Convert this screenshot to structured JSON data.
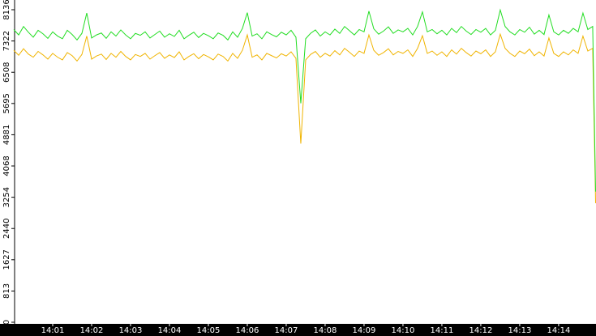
{
  "chart_data": {
    "type": "line",
    "x": [
      0,
      0.125,
      0.25,
      0.375,
      0.5,
      0.625,
      0.75,
      0.875,
      1,
      1.125,
      1.25,
      1.375,
      1.5,
      1.625,
      1.75,
      1.875,
      2,
      2.125,
      2.25,
      2.375,
      2.5,
      2.625,
      2.75,
      2.875,
      3,
      3.125,
      3.25,
      3.375,
      3.5,
      3.625,
      3.75,
      3.875,
      4,
      4.125,
      4.25,
      4.375,
      4.5,
      4.625,
      4.75,
      4.875,
      5,
      5.125,
      5.25,
      5.375,
      5.5,
      5.625,
      5.75,
      5.875,
      6,
      6.125,
      6.25,
      6.375,
      6.5,
      6.625,
      6.75,
      6.875,
      7,
      7.125,
      7.25,
      7.375,
      7.5,
      7.625,
      7.75,
      7.875,
      8,
      8.125,
      8.25,
      8.375,
      8.5,
      8.625,
      8.75,
      8.875,
      9,
      9.125,
      9.25,
      9.375,
      9.5,
      9.625,
      9.75,
      9.875,
      10,
      10.125,
      10.25,
      10.375,
      10.5,
      10.625,
      10.75,
      10.875,
      11,
      11.125,
      11.25,
      11.375,
      11.5,
      11.625,
      11.75,
      11.875,
      12,
      12.125,
      12.25,
      12.375,
      12.5,
      12.625,
      12.75,
      12.875,
      13,
      13.125,
      13.25,
      13.375,
      13.5,
      13.625,
      13.75,
      13.875,
      14,
      14.125,
      14.25,
      14.375,
      14.5,
      14.625,
      14.75,
      14.875,
      14.95
    ],
    "series": [
      {
        "color": "#22dd22",
        "values": [
          7620,
          7480,
          7700,
          7550,
          7420,
          7600,
          7510,
          7390,
          7560,
          7450,
          7380,
          7600,
          7490,
          7350,
          7520,
          8050,
          7400,
          7480,
          7530,
          7390,
          7560,
          7450,
          7610,
          7480,
          7380,
          7520,
          7470,
          7560,
          7400,
          7490,
          7580,
          7420,
          7510,
          7440,
          7600,
          7380,
          7470,
          7550,
          7410,
          7520,
          7460,
          7380,
          7530,
          7470,
          7350,
          7560,
          7420,
          7650,
          8060,
          7450,
          7510,
          7380,
          7560,
          7490,
          7430,
          7550,
          7480,
          7600,
          7420,
          5700,
          7380,
          7520,
          7610,
          7450,
          7560,
          7480,
          7630,
          7520,
          7700,
          7590,
          7480,
          7620,
          7560,
          8100,
          7640,
          7500,
          7580,
          7690,
          7520,
          7610,
          7560,
          7650,
          7480,
          7700,
          8080,
          7560,
          7620,
          7510,
          7600,
          7480,
          7650,
          7540,
          7700,
          7580,
          7490,
          7620,
          7550,
          7650,
          7480,
          7600,
          8130,
          7700,
          7560,
          7480,
          7620,
          7550,
          7680,
          7500,
          7600,
          7490,
          8000,
          7560,
          7480,
          7600,
          7520,
          7650,
          7560,
          8050,
          7620,
          7700,
          3400
        ]
      },
      {
        "color": "#f0b400",
        "values": [
          7080,
          6950,
          7120,
          6980,
          6900,
          7050,
          6960,
          6850,
          7000,
          6900,
          6830,
          7020,
          6940,
          6800,
          6970,
          7450,
          6850,
          6930,
          6980,
          6840,
          7000,
          6900,
          7050,
          6920,
          6830,
          6970,
          6920,
          7000,
          6850,
          6940,
          7020,
          6870,
          6960,
          6890,
          7040,
          6830,
          6920,
          6990,
          6860,
          6970,
          6910,
          6830,
          6980,
          6920,
          6800,
          7000,
          6870,
          7080,
          7480,
          6900,
          6960,
          6830,
          7000,
          6940,
          6880,
          6990,
          6930,
          7040,
          6870,
          4650,
          6830,
          6970,
          7050,
          6900,
          7000,
          6930,
          7070,
          6960,
          7130,
          7030,
          6920,
          7060,
          7000,
          7480,
          7080,
          6950,
          7020,
          7120,
          6960,
          7050,
          7000,
          7090,
          6920,
          7130,
          7460,
          7000,
          7060,
          6950,
          7040,
          6920,
          7090,
          6980,
          7130,
          7020,
          6930,
          7060,
          6990,
          7090,
          6920,
          7040,
          7500,
          7130,
          7000,
          6920,
          7060,
          6990,
          7110,
          6940,
          7040,
          6930,
          7400,
          7000,
          6920,
          7040,
          6960,
          7090,
          7000,
          7450,
          7060,
          7130,
          3100
        ]
      }
    ],
    "xlim": [
      0,
      14.96
    ],
    "xticks": [
      {
        "value": 1,
        "label": "14:01"
      },
      {
        "value": 2,
        "label": "14:02"
      },
      {
        "value": 3,
        "label": "14:03"
      },
      {
        "value": 4,
        "label": "14:04"
      },
      {
        "value": 5,
        "label": "14:05"
      },
      {
        "value": 6,
        "label": "14:06"
      },
      {
        "value": 7,
        "label": "14:07"
      },
      {
        "value": 8,
        "label": "14:08"
      },
      {
        "value": 9,
        "label": "14:09"
      },
      {
        "value": 10,
        "label": "14:10"
      },
      {
        "value": 11,
        "label": "14:11"
      },
      {
        "value": 12,
        "label": "14:12"
      },
      {
        "value": 13,
        "label": "14:13"
      },
      {
        "value": 14,
        "label": "14:14"
      }
    ],
    "ylim": [
      0,
      8136
    ],
    "yticks": [
      0,
      813,
      1627,
      2440,
      3254,
      4068,
      4881,
      5695,
      6508,
      7322,
      8136
    ]
  }
}
